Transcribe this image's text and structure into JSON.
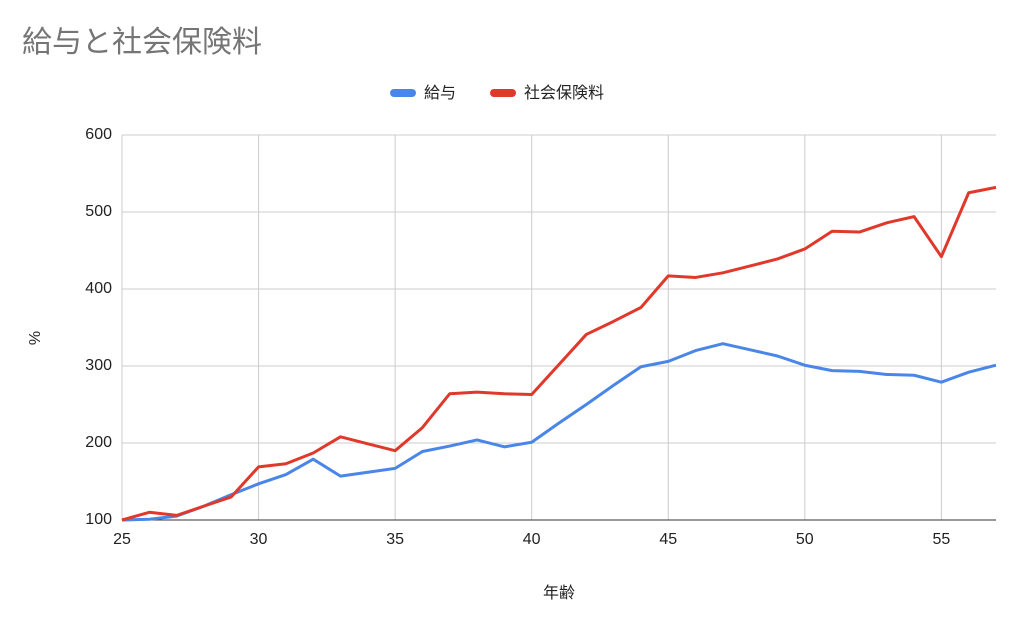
{
  "chart_data": {
    "type": "line",
    "title": "給与と社会保険料",
    "x_label": "年齢",
    "y_label": "%",
    "x": [
      25,
      26,
      27,
      28,
      29,
      30,
      31,
      32,
      33,
      34,
      35,
      36,
      37,
      38,
      39,
      40,
      41,
      42,
      43,
      44,
      45,
      46,
      47,
      48,
      49,
      50,
      51,
      52,
      53,
      54,
      55,
      56,
      57
    ],
    "series": [
      {
        "name": "給与",
        "color": "#4a86e8",
        "values": [
          100,
          101,
          105,
          118,
          133,
          147,
          159,
          179,
          157,
          162,
          167,
          189,
          196,
          204,
          195,
          201,
          226,
          250,
          275,
          299,
          306,
          320,
          329,
          321,
          313,
          301,
          294,
          293,
          289,
          288,
          279,
          292,
          301
        ]
      },
      {
        "name": "社会保険料",
        "color": "#e0392b",
        "values": [
          100,
          110,
          106,
          118,
          130,
          169,
          173,
          187,
          208,
          199,
          190,
          220,
          264,
          266,
          264,
          263,
          302,
          341,
          358,
          376,
          417,
          415,
          421,
          430,
          439,
          452,
          475,
          474,
          486,
          494,
          442,
          525,
          532
        ]
      }
    ],
    "xlim": [
      25,
      57
    ],
    "xticks": [
      25,
      30,
      35,
      40,
      45,
      50,
      55
    ],
    "ylim": [
      100,
      600
    ],
    "yticks": [
      100,
      200,
      300,
      400,
      500,
      600
    ],
    "grid": true,
    "legend": "top"
  }
}
